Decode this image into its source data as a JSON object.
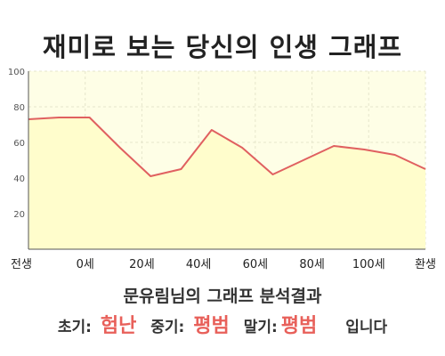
{
  "title": "재미로 보는 당신의 인생 그래프",
  "chart_data": {
    "type": "area",
    "x_ticks": [
      "전생",
      "0세",
      "20세",
      "40세",
      "60세",
      "80세",
      "100세",
      "환생"
    ],
    "x": [
      0,
      1,
      2,
      3,
      4,
      5,
      6,
      7,
      8,
      9,
      10,
      11,
      12,
      13
    ],
    "values": [
      73,
      74,
      74,
      57,
      41,
      45,
      67,
      57,
      42,
      50,
      58,
      56,
      53,
      45
    ],
    "y_ticks": [
      20,
      40,
      60,
      80,
      100
    ],
    "ylim": [
      0,
      100
    ],
    "grid": true,
    "fill_color": "#fffdcc",
    "line_color": "#e06060",
    "plot_background": "#fefee6"
  },
  "result": {
    "heading": "문유림님의 그래프 분석결과",
    "early_label": "초기:",
    "early_value": "험난",
    "middle_label": "중기:",
    "middle_value": "평범",
    "late_label": "말기:",
    "late_value": "평범",
    "suffix": "입니다"
  }
}
